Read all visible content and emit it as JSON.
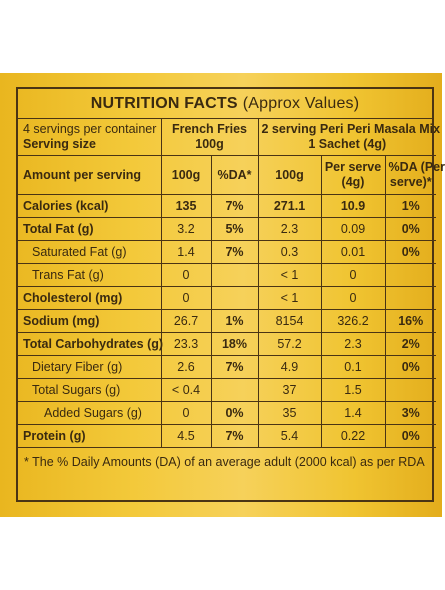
{
  "label": {
    "title_bold": "NUTRITION FACTS",
    "title_light": "(Approx Values)",
    "header": {
      "servings_line1": "4 servings per container",
      "servings_line2": "Serving size",
      "product1_line1": "French Fries",
      "product1_line2": "100g",
      "product2_line1": "2 serving Peri Peri Masala Mix",
      "product2_line2": "1 Sachet (4g)"
    },
    "columns": {
      "amount": "Amount per serving",
      "c1": "100g",
      "c2": "%DA*",
      "c3": "100g",
      "c4_line1": "Per serve",
      "c4_line2": "(4g)",
      "c5_line1": "%DA (Per",
      "c5_line2": "serve)*"
    },
    "rows": [
      {
        "name": "Calories (kcal)",
        "v1": "135",
        "v2": "7%",
        "v3": "271.1",
        "v4": "10.9",
        "v5": "1%"
      },
      {
        "name": "Total Fat (g)",
        "v1": "3.2",
        "v2": "5%",
        "v3": "2.3",
        "v4": "0.09",
        "v5": "0%"
      },
      {
        "name": "Saturated Fat (g)",
        "v1": "1.4",
        "v2": "7%",
        "v3": "0.3",
        "v4": "0.01",
        "v5": "0%"
      },
      {
        "name": "Trans Fat (g)",
        "v1": "0",
        "v2": "",
        "v3": "< 1",
        "v4": "0",
        "v5": ""
      },
      {
        "name": "Cholesterol (mg)",
        "v1": "0",
        "v2": "",
        "v3": "< 1",
        "v4": "0",
        "v5": ""
      },
      {
        "name": "Sodium (mg)",
        "v1": "26.7",
        "v2": "1%",
        "v3": "8154",
        "v4": "326.2",
        "v5": "16%"
      },
      {
        "name": "Total Carbohydrates (g)",
        "v1": "23.3",
        "v2": "18%",
        "v3": "57.2",
        "v4": "2.3",
        "v5": "2%"
      },
      {
        "name": "Dietary Fiber (g)",
        "v1": "2.6",
        "v2": "7%",
        "v3": "4.9",
        "v4": "0.1",
        "v5": "0%"
      },
      {
        "name": "Total Sugars (g)",
        "v1": "< 0.4",
        "v2": "",
        "v3": "37",
        "v4": "1.5",
        "v5": ""
      },
      {
        "name": "Added Sugars (g)",
        "v1": "0",
        "v2": "0%",
        "v3": "35",
        "v4": "1.4",
        "v5": "3%"
      },
      {
        "name": "Protein (g)",
        "v1": "4.5",
        "v2": "7%",
        "v3": "5.4",
        "v4": "0.22",
        "v5": "0%"
      }
    ],
    "footnote": "* The % Daily Amounts (DA) of an average adult (2000 kcal) as per RDA"
  }
}
